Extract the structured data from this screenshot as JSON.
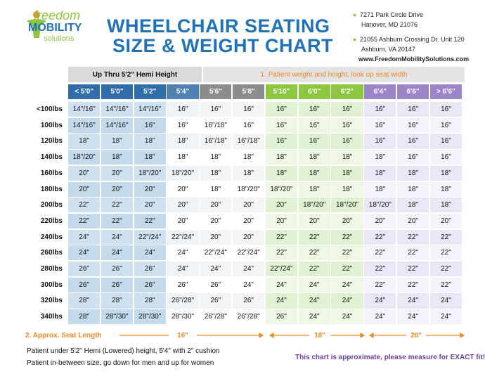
{
  "logo": {
    "line1": "freedom",
    "line2": "MOBILITY",
    "line3": "solutions"
  },
  "header": {
    "title": [
      "WHEELCHAIR SEATING",
      "SIZE & WEIGHT CHART"
    ],
    "address": [
      "7271 Park Circle Drive",
      "Hanover, MD 21076",
      "21055 Ashburn Crossing Dr. Unit 120",
      "Ashburn, VA 20147",
      "www.FreedomMobilitySolutions.com"
    ]
  },
  "table": {
    "groups": [
      "Up Thru 5'2\" Hemi Height",
      "1. Patient weight and height, look up seat width"
    ],
    "columns": [
      "< 5'0\"",
      "5'0\"",
      "5'2\"",
      "5'4\"",
      "5'6\"",
      "5'8\"",
      "5'10\"",
      "6'0\"",
      "6'2\"",
      "6'4\"",
      "6'6\"",
      "> 6'6\""
    ],
    "rows": [
      [
        "<100lbs",
        "14\"/16\"",
        "14\"/16\"",
        "14\"/16\"",
        "16\"",
        "16\"",
        "16\"",
        "16\"",
        "16\"",
        "16\"",
        "16\"",
        "16\"",
        "16\""
      ],
      [
        "100lbs",
        "14\"/16\"",
        "14\"/16\"",
        "16\"",
        "16\"",
        "16\"/18\"",
        "16\"",
        "16\"",
        "16\"",
        "16\"",
        "16\"",
        "16\"",
        "16\""
      ],
      [
        "120lbs",
        "18\"",
        "18\"",
        "18\"",
        "18\"",
        "16\"/18\"",
        "16\"/18\"",
        "16\"",
        "16\"",
        "16\"",
        "16\"",
        "16\"",
        "16\""
      ],
      [
        "140lbs",
        "18\"/20\"",
        "18\"",
        "18\"",
        "18\"",
        "18\"",
        "18\"",
        "18\"",
        "18\"",
        "18\"",
        "18\"",
        "16\"",
        "16\""
      ],
      [
        "160lbs",
        "20\"",
        "20\"",
        "18\"/20\"",
        "18\"/20\"",
        "18\"",
        "18\"",
        "18\"",
        "18\"",
        "18\"",
        "18\"",
        "18\"",
        "18\""
      ],
      [
        "180lbs",
        "20\"",
        "20\"",
        "20\"",
        "20\"",
        "18\"",
        "18\"/20\"",
        "18\"/20\"",
        "18\"",
        "18\"",
        "18\"",
        "18\"",
        "18\""
      ],
      [
        "200lbs",
        "22\"",
        "22\"",
        "20\"",
        "20\"",
        "20\"",
        "20\"",
        "20\"",
        "18\"/20\"",
        "18\"/20\"",
        "18\"/20\"",
        "18\"",
        "18\""
      ],
      [
        "220lbs",
        "22\"",
        "22\"",
        "22\"",
        "20\"",
        "20\"",
        "20\"",
        "20\"",
        "20\"",
        "20\"",
        "20\"",
        "20\"",
        "20\""
      ],
      [
        "240lbs",
        "24\"",
        "24\"",
        "22\"/24\"",
        "22\"/24\"",
        "20\"",
        "20\"",
        "22\"",
        "22\"",
        "22\"",
        "22\"",
        "22\"",
        "22\""
      ],
      [
        "260lbs",
        "24\"",
        "24\"",
        "24\"",
        "24\"",
        "22\"/24\"",
        "22\"/24\"",
        "22\"",
        "22\"",
        "22\"",
        "22\"",
        "22\"",
        "22\""
      ],
      [
        "280lbs",
        "26\"",
        "26\"",
        "26\"",
        "24\"",
        "24\"",
        "24\"",
        "22\"/24\"",
        "22\"",
        "22\"",
        "22\"",
        "22\"",
        "22\""
      ],
      [
        "300lbs",
        "26\"",
        "26\"",
        "26\"",
        "26\"",
        "26\"",
        "24\"",
        "24\"",
        "24\"",
        "24\"",
        "22\"",
        "22\"",
        "22\""
      ],
      [
        "320lbs",
        "28\"",
        "28\"",
        "28\"",
        "26\"/28\"",
        "26\"",
        "26\"",
        "24\"",
        "24\"",
        "24\"",
        "24\"",
        "24\"",
        "24\""
      ],
      [
        "340lbs",
        "28\"",
        "28\"/30\"",
        "28\"/30\"",
        "28\"/30\"",
        "26\"/28\"",
        "26\"/28\"",
        "26\"",
        "24\"",
        "24\"",
        "24\"",
        "24\"",
        "24\""
      ]
    ],
    "seat_length": {
      "label": "2. Approx. Seat Length",
      "values": [
        "16\"",
        "18\"",
        "20\""
      ]
    }
  },
  "footer": {
    "notes": [
      "Patient under 5'2\" Hemi (Lowered) height, 5'4\" with 2\" cushion",
      "Patient in-between size, go down for men and up for women"
    ],
    "disclaimer": "This chart is approximate, please measure for EXACT fit!"
  }
}
